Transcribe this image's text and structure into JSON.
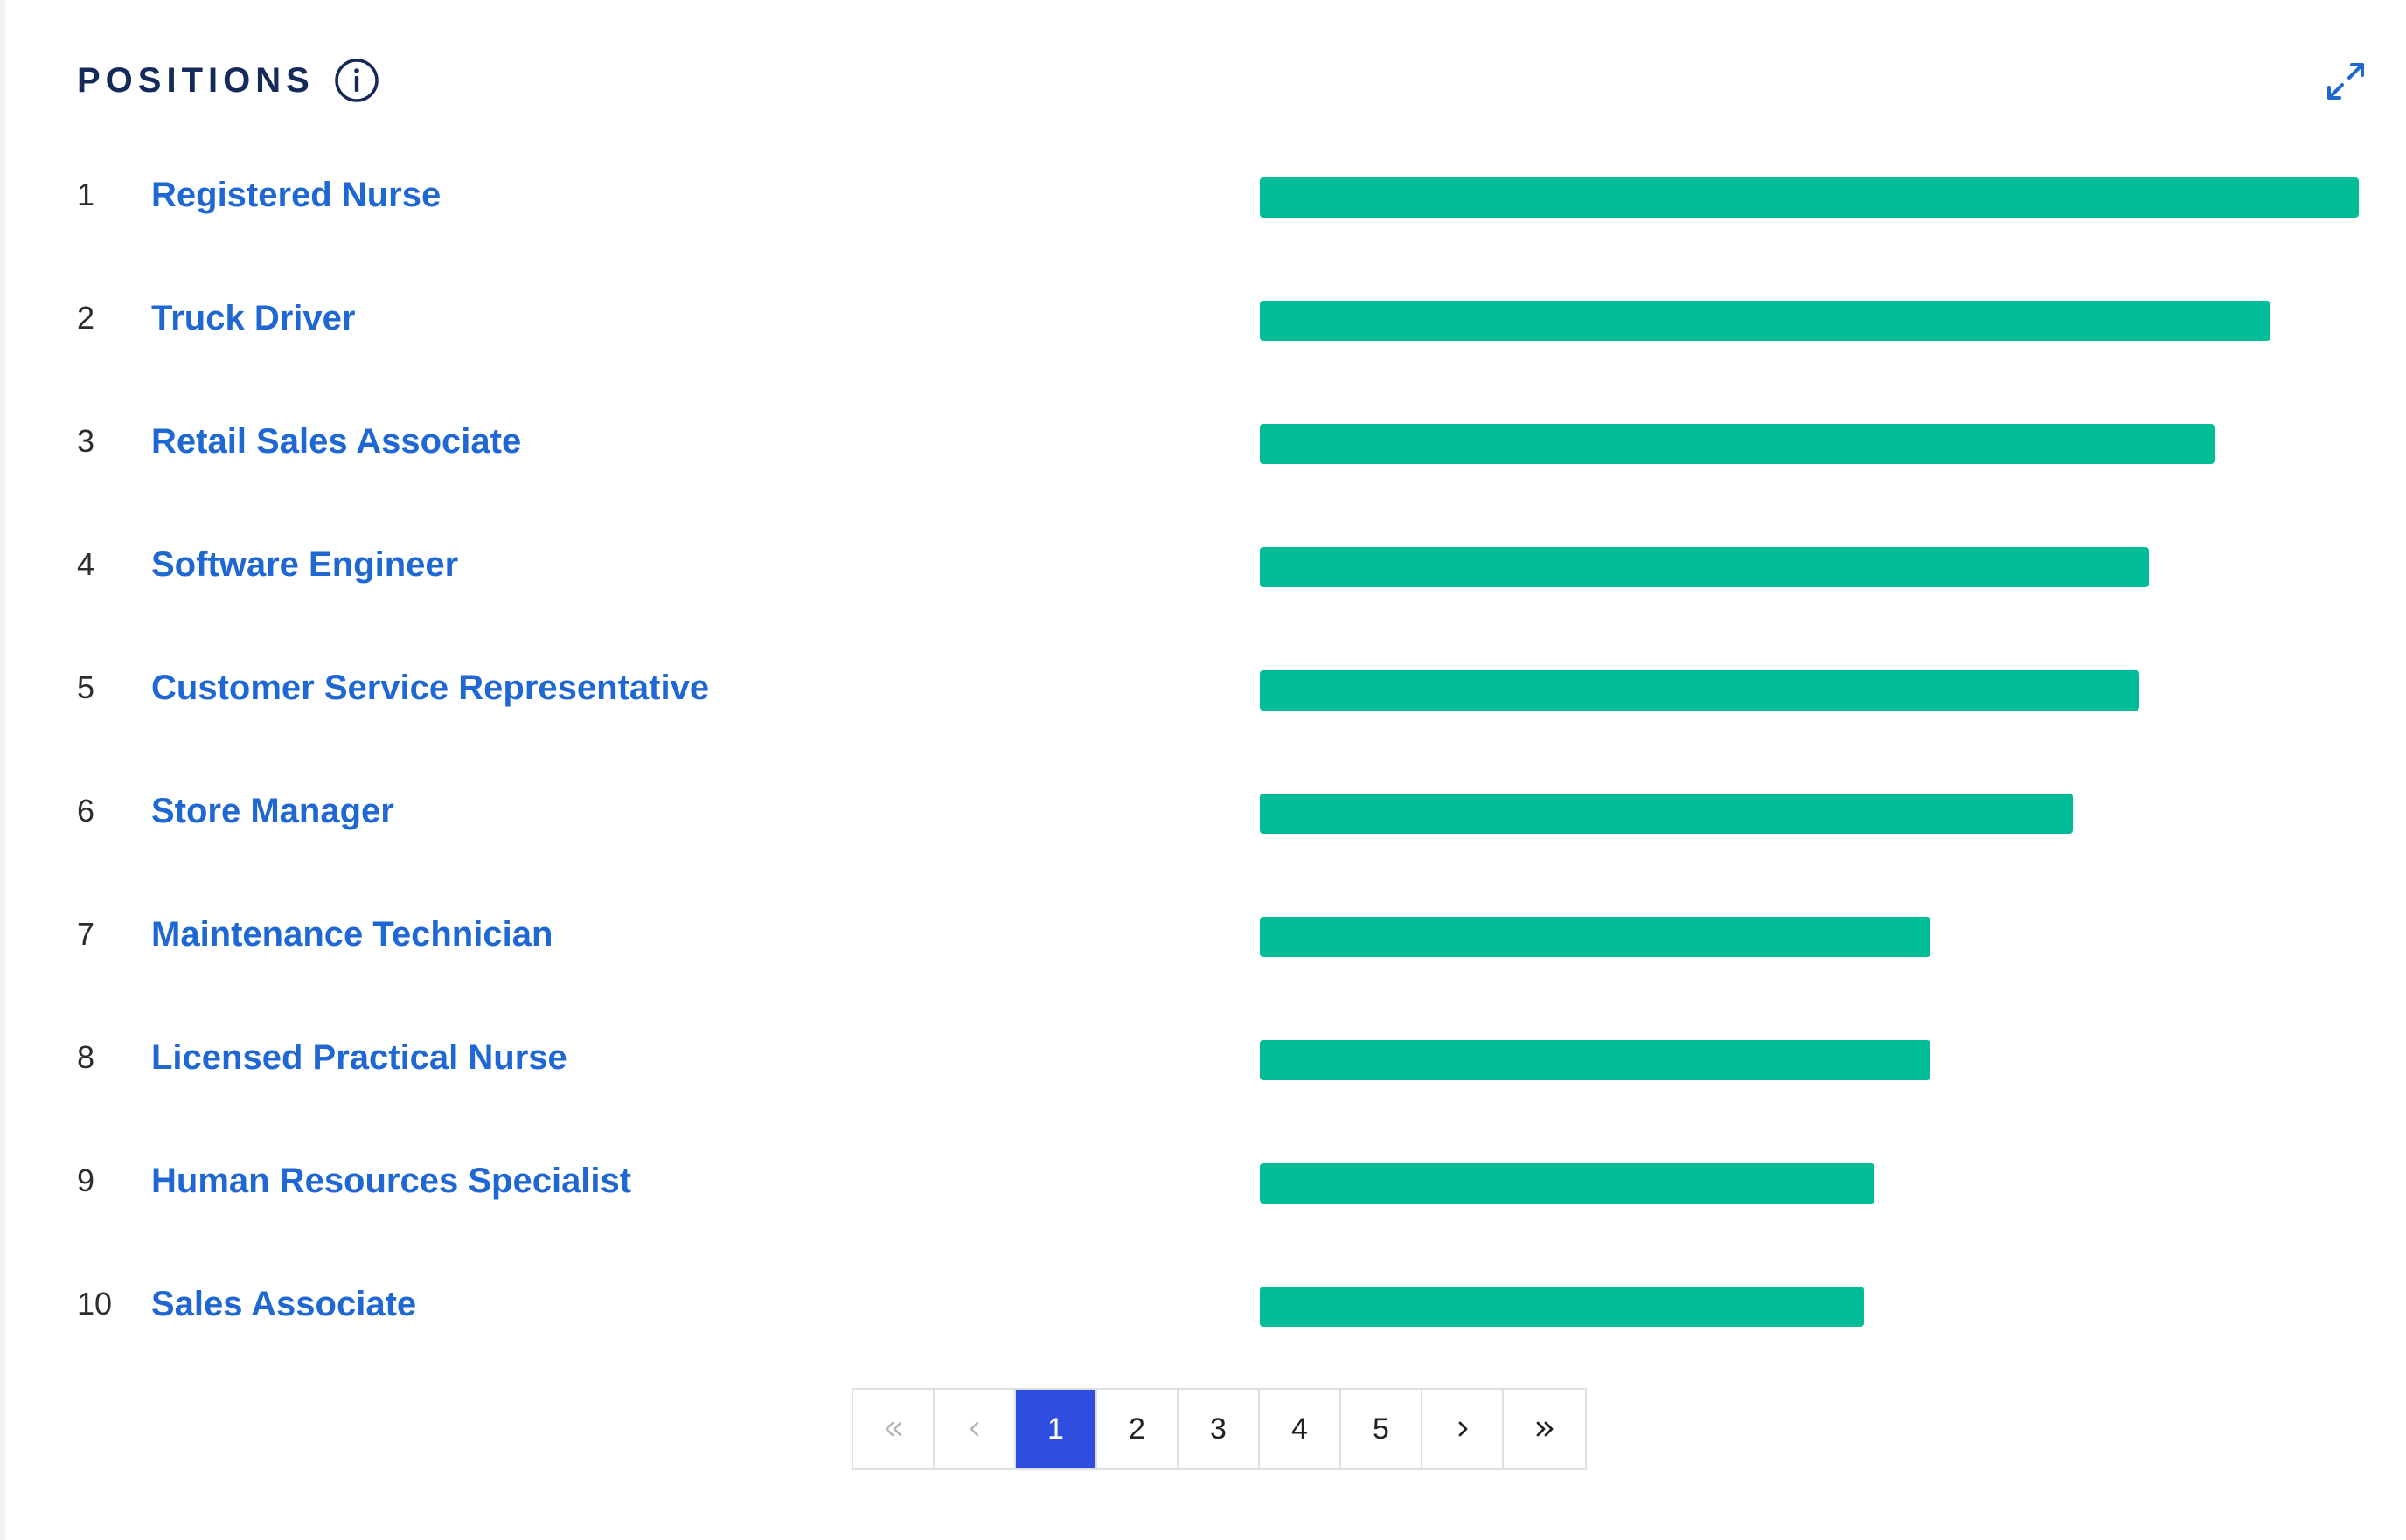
{
  "panel": {
    "title": "POSITIONS",
    "info_icon": "info-circle-icon",
    "expand_icon": "expand-arrows-icon",
    "accent_color": "#1f67d2",
    "bar_color": "#00bd98"
  },
  "positions": [
    {
      "rank": "1",
      "name": "Registered Nurse",
      "relative_value": 1.0
    },
    {
      "rank": "2",
      "name": "Truck Driver",
      "relative_value": 0.92
    },
    {
      "rank": "3",
      "name": "Retail Sales Associate",
      "relative_value": 0.869
    },
    {
      "rank": "4",
      "name": "Software Engineer",
      "relative_value": 0.809
    },
    {
      "rank": "5",
      "name": "Customer Service Representative",
      "relative_value": 0.8
    },
    {
      "rank": "6",
      "name": "Store Manager",
      "relative_value": 0.74
    },
    {
      "rank": "7",
      "name": "Maintenance Technician",
      "relative_value": 0.61
    },
    {
      "rank": "8",
      "name": "Licensed Practical Nurse",
      "relative_value": 0.61
    },
    {
      "rank": "9",
      "name": "Human Resources Specialist",
      "relative_value": 0.559
    },
    {
      "rank": "10",
      "name": "Sales Associate",
      "relative_value": 0.55
    }
  ],
  "pagination": {
    "first_icon": "double-chevron-left-icon",
    "prev_icon": "chevron-left-icon",
    "next_icon": "chevron-right-icon",
    "last_icon": "double-chevron-right-icon",
    "pages": [
      "1",
      "2",
      "3",
      "4",
      "5"
    ],
    "current_page": "1",
    "active_color": "#2f4ee0"
  }
}
